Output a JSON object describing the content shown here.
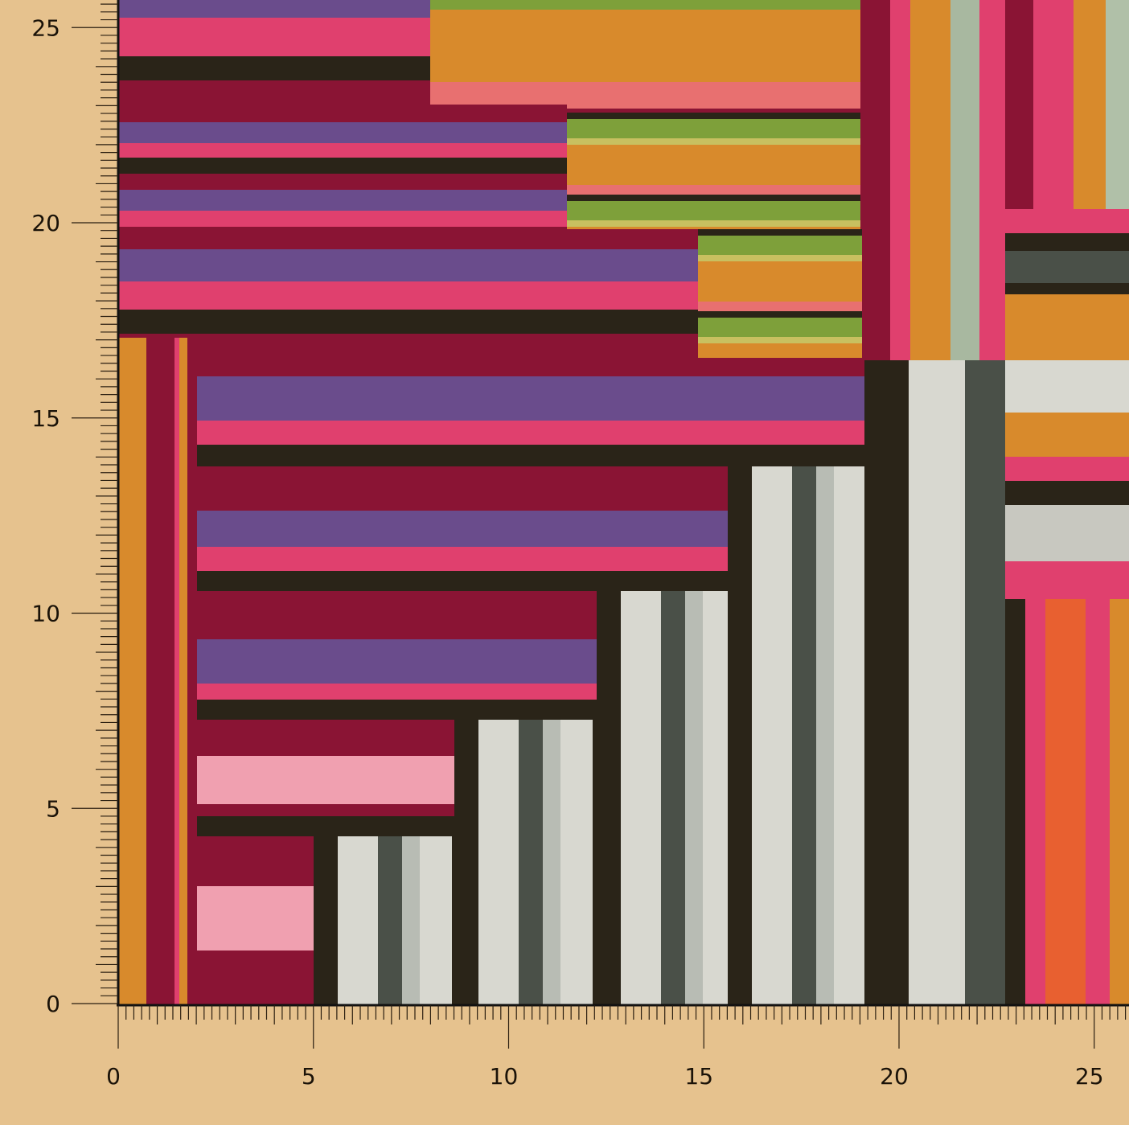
{
  "y_axis": {
    "tick_labels": [
      "0",
      "5",
      "10",
      "15",
      "20",
      "25"
    ]
  },
  "x_axis": {
    "tick_labels": [
      "0",
      "5",
      "10",
      "15",
      "20",
      "25"
    ]
  },
  "colors": {
    "background": "#e6c28e",
    "crimson": "#8a1434",
    "pink": "#e0406e",
    "purple": "#6a4c8c",
    "black": "#2a2418",
    "orange": "#d88a2c",
    "green": "#7ea03a",
    "light_grey": "#d8d8d0",
    "dark_grey": "#4a5048"
  },
  "content": "patchwork woven fabric with ruler scale"
}
